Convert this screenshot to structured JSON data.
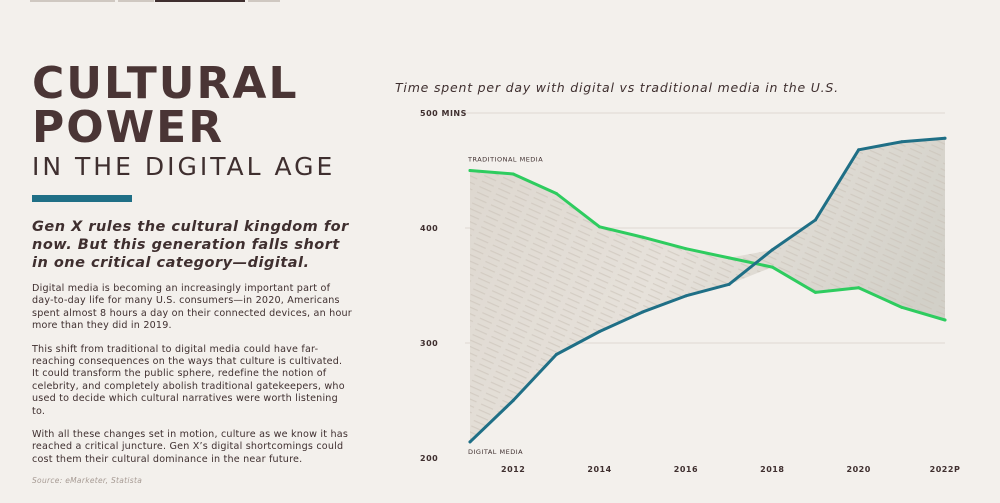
{
  "headline": {
    "title": "CULTURAL POWER",
    "subtitle": "IN THE DIGITAL AGE",
    "accent_color": "#1f6f86"
  },
  "lead": "Gen X rules the cultural kingdom for now. But this generation falls short in one critical category—digital.",
  "paragraphs": [
    "Digital media is becoming an increasingly important part of day-to-day life for many U.S. consumers—in 2020, Americans spent almost 8 hours a day on their connected devices, an hour more than they did in 2019.",
    "This shift from traditional to digital media could have far-reaching consequences on the ways that culture is cultivated. It could transform the public sphere, redefine the notion of celebrity, and completely abolish traditional gatekeepers, who used to decide which cultural narratives were worth listening to.",
    "With all these changes set in motion, culture as we know it has reached a critical juncture. Gen X’s digital shortcomings could cost them their cultural dominance in the near future."
  ],
  "source": "Source: eMarketer, Statista",
  "chart_data": {
    "type": "line",
    "title": "Time spent per day with digital vs traditional media in the U.S.",
    "x": [
      "2011",
      "2012",
      "2013",
      "2014",
      "2015",
      "2016",
      "2017",
      "2018",
      "2019",
      "2020",
      "2021",
      "2022P"
    ],
    "x_tick_labels": [
      "2012",
      "2014",
      "2016",
      "2018",
      "2020",
      "2022P"
    ],
    "y_tick_labels": [
      "500 MINS",
      "400",
      "300",
      "200"
    ],
    "ylim": [
      200,
      500
    ],
    "series": [
      {
        "name": "TRADITIONAL MEDIA",
        "color": "#2ecc5f",
        "values": [
          450,
          447,
          430,
          401,
          392,
          382,
          374,
          366,
          344,
          348,
          331,
          320
        ]
      },
      {
        "name": "DIGITAL MEDIA",
        "color": "#1f6f86",
        "values": [
          214,
          250,
          290,
          310,
          327,
          341,
          351,
          381,
          407,
          468,
          475,
          478
        ]
      }
    ],
    "grid": true
  }
}
